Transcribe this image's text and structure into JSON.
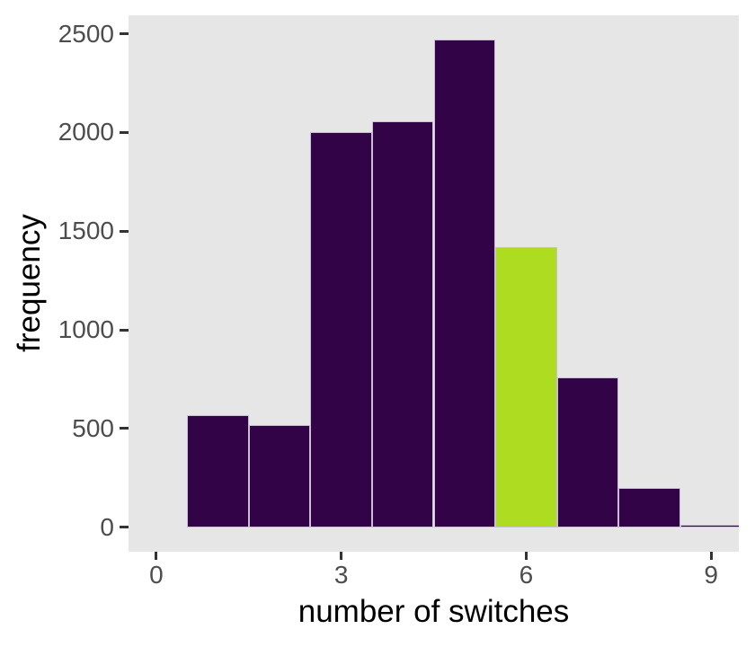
{
  "chart_data": {
    "type": "bar",
    "subtype": "histogram",
    "title": "",
    "xlabel": "number of switches",
    "ylabel": "frequency",
    "categories": [
      1,
      2,
      3,
      4,
      5,
      6,
      7,
      8,
      9
    ],
    "values": [
      570,
      520,
      2000,
      2055,
      2470,
      1420,
      760,
      200,
      15
    ],
    "bin_width": 1,
    "highlighted_category": 6,
    "x_ticks": [
      0,
      3,
      6,
      9
    ],
    "y_ticks": [
      0,
      500,
      1000,
      1500,
      2000,
      2500
    ],
    "xlim": [
      -0.45,
      9.45
    ],
    "ylim": [
      -123.5,
      2593.5
    ],
    "grid": false,
    "legend": false,
    "colors": {
      "bar_fill": "#330348",
      "highlight_fill": "#AEDC21",
      "bar_stroke": "#C9BFD3",
      "panel_background": "#E6E6E6",
      "tick_mark": "#333333",
      "tick_label": "#4D4D4D",
      "axis_title": "#000000",
      "page_background": "#FFFFFF"
    }
  }
}
